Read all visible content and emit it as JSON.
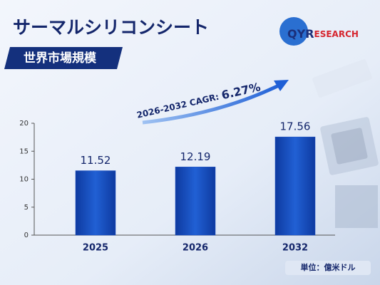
{
  "chart_data": {
    "type": "bar",
    "title": "サーマルシリコンシート",
    "subtitle": "世界市場規模",
    "annotation": {
      "text": "2026-2032 CAGR: ",
      "highlight": "6.27%"
    },
    "categories": [
      "2025",
      "2026",
      "2032"
    ],
    "values": [
      11.52,
      12.19,
      17.56
    ],
    "color": "#1b4fc2",
    "ylim": [
      0,
      20
    ],
    "yticks": [
      0,
      5,
      10,
      15,
      20
    ],
    "grid": false,
    "unit": "単位：億米ドル"
  },
  "logo": {
    "primary": "QYR",
    "secondary": "ESEARCH"
  }
}
